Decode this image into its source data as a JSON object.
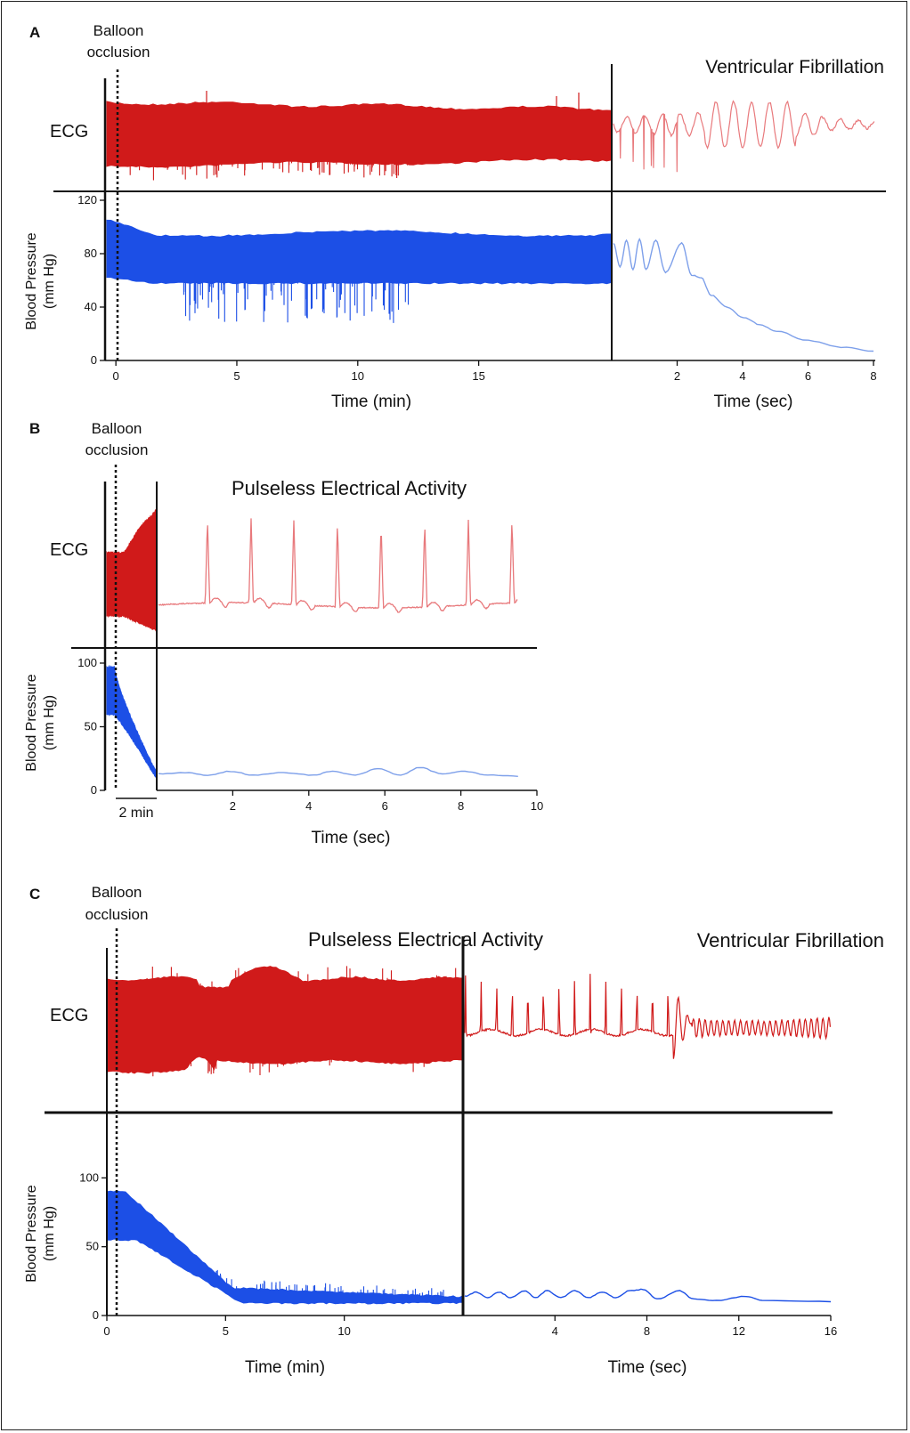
{
  "colors": {
    "ecg": "#d01a1a",
    "ecg_light": "#e8797c",
    "bp": "#1c4fe6",
    "bp_light": "#7ea0ea"
  },
  "chart_data": [
    {
      "panel": "A",
      "type": "line",
      "annotation_occlusion": [
        "Balloon",
        "occlusion"
      ],
      "right_title": "Ventricular Fibrillation",
      "ecg_label": "ECG",
      "ylabel": [
        "Blood Pressure",
        "(mm Hg)"
      ],
      "y_ticks": [
        "0",
        "40",
        "80",
        "120"
      ],
      "ylim": [
        0,
        120
      ],
      "left": {
        "xlabel": "Time (min)",
        "xlim": [
          -1,
          20.5
        ],
        "x_ticks": [
          "0",
          "5",
          "10",
          "15"
        ],
        "bp_upper": 95,
        "bp_lower": 58
      },
      "right": {
        "xlabel": "Time (sec)",
        "xlim": [
          0,
          8
        ],
        "x_ticks": [
          "2",
          "4",
          "6",
          "8"
        ],
        "bp_points": [
          [
            0,
            88
          ],
          [
            0.2,
            70
          ],
          [
            0.4,
            90
          ],
          [
            0.6,
            68
          ],
          [
            0.8,
            91
          ],
          [
            1.0,
            68
          ],
          [
            1.3,
            90
          ],
          [
            1.6,
            66
          ],
          [
            2.1,
            88
          ],
          [
            2.4,
            64
          ],
          [
            2.7,
            62
          ],
          [
            3.0,
            49
          ],
          [
            3.5,
            40
          ],
          [
            4.0,
            32
          ],
          [
            4.5,
            27
          ],
          [
            5.0,
            22
          ],
          [
            6.0,
            15
          ],
          [
            7.0,
            10
          ],
          [
            8.0,
            7
          ]
        ]
      }
    },
    {
      "panel": "B",
      "type": "line",
      "annotation_occlusion": [
        "Balloon",
        "occlusion"
      ],
      "right_title": "Pulseless Electrical Activity",
      "ecg_label": "ECG",
      "ylabel": [
        "Blood Pressure",
        "(mm Hg)"
      ],
      "y_ticks": [
        "0",
        "50",
        "100"
      ],
      "ylim": [
        0,
        100
      ],
      "left": {
        "scale_bar": "2 min",
        "bp_upper": [
          97,
          15
        ],
        "bp_lower": [
          60,
          10
        ]
      },
      "right": {
        "xlabel": "Time (sec)",
        "xlim": [
          0,
          10
        ],
        "x_ticks": [
          "2",
          "4",
          "6",
          "8",
          "10"
        ],
        "bp_points": [
          [
            0,
            13
          ],
          [
            0.7,
            14
          ],
          [
            1.3,
            12
          ],
          [
            1.9,
            15
          ],
          [
            2.5,
            12
          ],
          [
            3.3,
            14
          ],
          [
            4.1,
            12
          ],
          [
            4.6,
            15
          ],
          [
            5.2,
            12
          ],
          [
            5.8,
            17
          ],
          [
            6.4,
            12
          ],
          [
            6.9,
            18
          ],
          [
            7.5,
            13
          ],
          [
            8.1,
            15
          ],
          [
            8.7,
            12
          ],
          [
            9.5,
            11
          ]
        ]
      }
    },
    {
      "panel": "C",
      "type": "line",
      "annotation_occlusion": [
        "Balloon",
        "occlusion"
      ],
      "middle_title": "Pulseless Electrical Activity",
      "right_title": "Ventricular Fibrillation",
      "ecg_label": "ECG",
      "ylabel": [
        "Blood Pressure",
        "(mm Hg)"
      ],
      "y_ticks": [
        "0",
        "50",
        "100"
      ],
      "ylim": [
        0,
        130
      ],
      "left": {
        "xlabel": "Time (min)",
        "xlim": [
          0,
          15
        ],
        "x_ticks": [
          "0",
          "5",
          "10"
        ],
        "bp_upper": [
          90,
          20
        ],
        "bp_lower": [
          55,
          9
        ]
      },
      "right": {
        "xlabel": "Time (sec)",
        "xlim": [
          0,
          16
        ],
        "x_ticks": [
          "4",
          "8",
          "12",
          "16"
        ],
        "bp_points": [
          [
            0,
            14
          ],
          [
            0.5,
            17
          ],
          [
            1,
            13
          ],
          [
            1.5,
            17
          ],
          [
            2,
            13
          ],
          [
            2.6,
            18
          ],
          [
            3.1,
            13
          ],
          [
            3.6,
            18
          ],
          [
            4.2,
            13
          ],
          [
            4.8,
            18
          ],
          [
            5.4,
            13
          ],
          [
            6,
            17
          ],
          [
            6.6,
            13
          ],
          [
            7.2,
            18
          ],
          [
            7.8,
            19
          ],
          [
            8.4,
            12
          ],
          [
            9.4,
            18
          ],
          [
            10,
            12
          ],
          [
            11,
            11
          ],
          [
            12.3,
            14
          ],
          [
            13,
            11
          ],
          [
            16,
            10
          ]
        ]
      }
    }
  ]
}
